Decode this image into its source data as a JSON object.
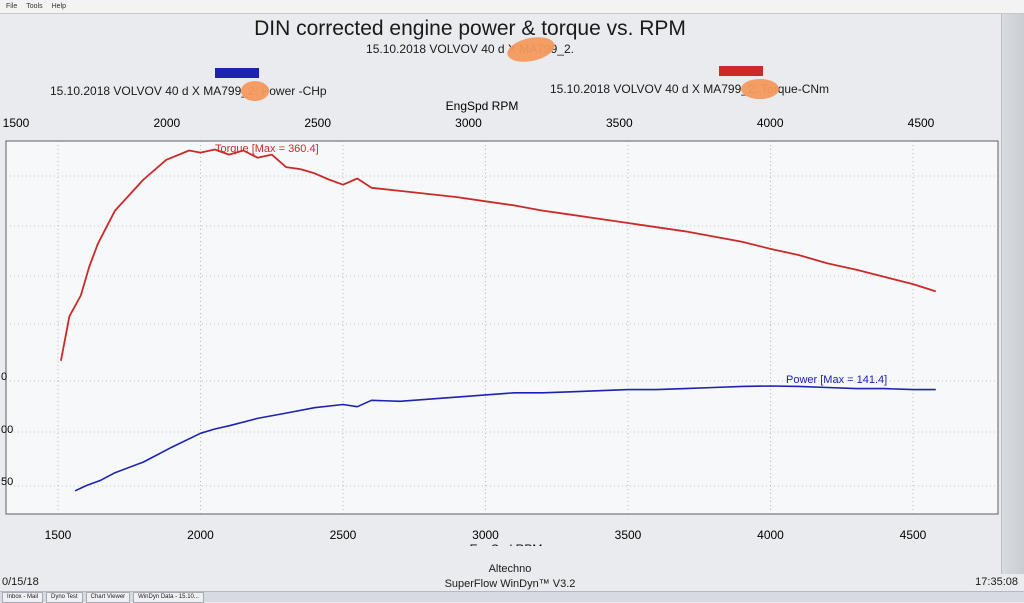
{
  "menu": [
    "File",
    "Tools",
    "Help"
  ],
  "header": {
    "title": "DIN corrected engine power & torque vs. RPM",
    "subtitle": "15.10.2018  VOLVOV 40 d  X      MA799_2."
  },
  "legend": {
    "power": "15.10.2018  VOLVOV 40 d  X      MA799_2: Power -CHp",
    "torque": "15.10.2018  VOLVOV 40 d  X      MA799_2: Torque-CNm"
  },
  "colors": {
    "power": "#1c23b0",
    "torque": "#cc2a28",
    "grid": "#8a8f95",
    "plot_bg": "#f7f8f9",
    "redaction": "#f49a5d"
  },
  "chart_data": {
    "type": "line",
    "title": "DIN corrected engine power & torque vs. RPM",
    "xlabel": "EngSpd RPM",
    "top_axis_label": "EngSpd RPM",
    "xlim_bottom": [
      1500,
      4600
    ],
    "xlim_top": [
      1500,
      4600
    ],
    "x_ticks_bottom": [
      "1500",
      "2000",
      "2500",
      "3000",
      "3500",
      "4000",
      "4500"
    ],
    "x_ticks_top": [
      "1500",
      "2000",
      "2500",
      "3000",
      "3500",
      "4000",
      "4500"
    ],
    "y_ticks_left_visible": [
      "0",
      "00",
      "50"
    ],
    "annotations": {
      "torque": "Torque [Max = 360.4]",
      "power": "Power  [Max = 141.4]"
    },
    "series": [
      {
        "name": "Torque-CNm",
        "color": "#cc2a28",
        "x": [
          1510,
          1540,
          1580,
          1610,
          1640,
          1700,
          1800,
          1880,
          1960,
          2000,
          2050,
          2100,
          2150,
          2200,
          2250,
          2300,
          2350,
          2400,
          2450,
          2500,
          2550,
          2600,
          2700,
          2800,
          2900,
          3000,
          3100,
          3200,
          3300,
          3400,
          3500,
          3600,
          3700,
          3800,
          3900,
          4000,
          4100,
          4200,
          4300,
          4400,
          4500,
          4580
        ],
        "y": [
          155,
          198,
          218,
          246,
          268,
          300,
          330,
          349,
          358,
          356,
          359,
          354,
          358,
          351,
          354,
          342,
          340,
          336,
          330,
          325,
          331,
          322,
          319,
          316,
          313,
          309,
          305,
          300,
          296,
          292,
          288,
          284,
          280,
          275,
          270,
          263,
          257,
          249,
          243,
          236,
          229,
          222
        ]
      },
      {
        "name": "Power -CHp",
        "color": "#1c23b0",
        "x": [
          1560,
          1600,
          1650,
          1700,
          1800,
          1900,
          2000,
          2050,
          2100,
          2200,
          2300,
          2400,
          2500,
          2550,
          2600,
          2700,
          2800,
          2900,
          3000,
          3100,
          3200,
          3300,
          3400,
          3500,
          3600,
          3700,
          3800,
          3900,
          4000,
          4100,
          4200,
          4300,
          4400,
          4500,
          4580
        ],
        "y": [
          43,
          48,
          53,
          60,
          70,
          84,
          97,
          101,
          104,
          111,
          116,
          121,
          124,
          122,
          128,
          127,
          129,
          131,
          133,
          135,
          135,
          136,
          137,
          138,
          138,
          139,
          140,
          141,
          141.4,
          141,
          140,
          139,
          139,
          138,
          138
        ]
      }
    ]
  },
  "status": {
    "left": "0/15/18",
    "center_1": "Altechno",
    "center_2": "SuperFlow WinDyn™ V3.2",
    "right": "17:35:08"
  },
  "taskbar": [
    "Inbox - Mail",
    "Dyno Test",
    "Chart Viewer",
    "WinDyn Data - 15.10..."
  ]
}
